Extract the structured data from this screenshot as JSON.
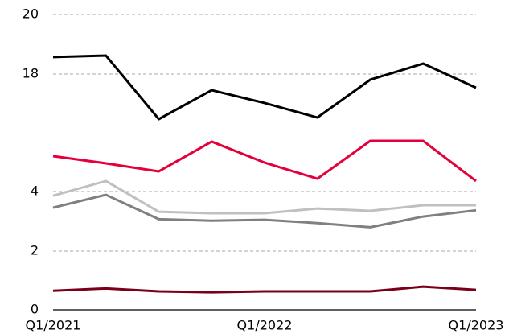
{
  "chart_data": {
    "type": "line",
    "categories": [
      "Q1/2021",
      null,
      null,
      null,
      "Q1/2022",
      null,
      null,
      null,
      "Q1/2023"
    ],
    "series": [
      {
        "color": "#000000",
        "values": [
          18.57,
          18.62,
          12.63,
          16.08,
          14.55,
          12.82,
          17.33,
          18.35,
          16.37
        ]
      },
      {
        "color": "#e4003a",
        "values": [
          8.22,
          7.36,
          6.4,
          9.95,
          7.45,
          5.53,
          10.04,
          10.04,
          5.25
        ]
      },
      {
        "color": "#c0c0c0",
        "values": [
          3.86,
          5.25,
          3.32,
          3.27,
          3.27,
          3.43,
          3.35,
          3.54,
          3.54
        ]
      },
      {
        "color": "#808080",
        "values": [
          3.46,
          3.89,
          3.07,
          3.02,
          3.05,
          2.94,
          2.8,
          3.16,
          3.37
        ]
      },
      {
        "color": "#7a0019",
        "values": [
          0.65,
          0.73,
          0.63,
          0.6,
          0.63,
          0.63,
          0.63,
          0.79,
          0.68
        ]
      }
    ],
    "ylim": [
      0,
      20
    ],
    "yticks": [
      0,
      2,
      4,
      18,
      20
    ],
    "grid": true
  }
}
